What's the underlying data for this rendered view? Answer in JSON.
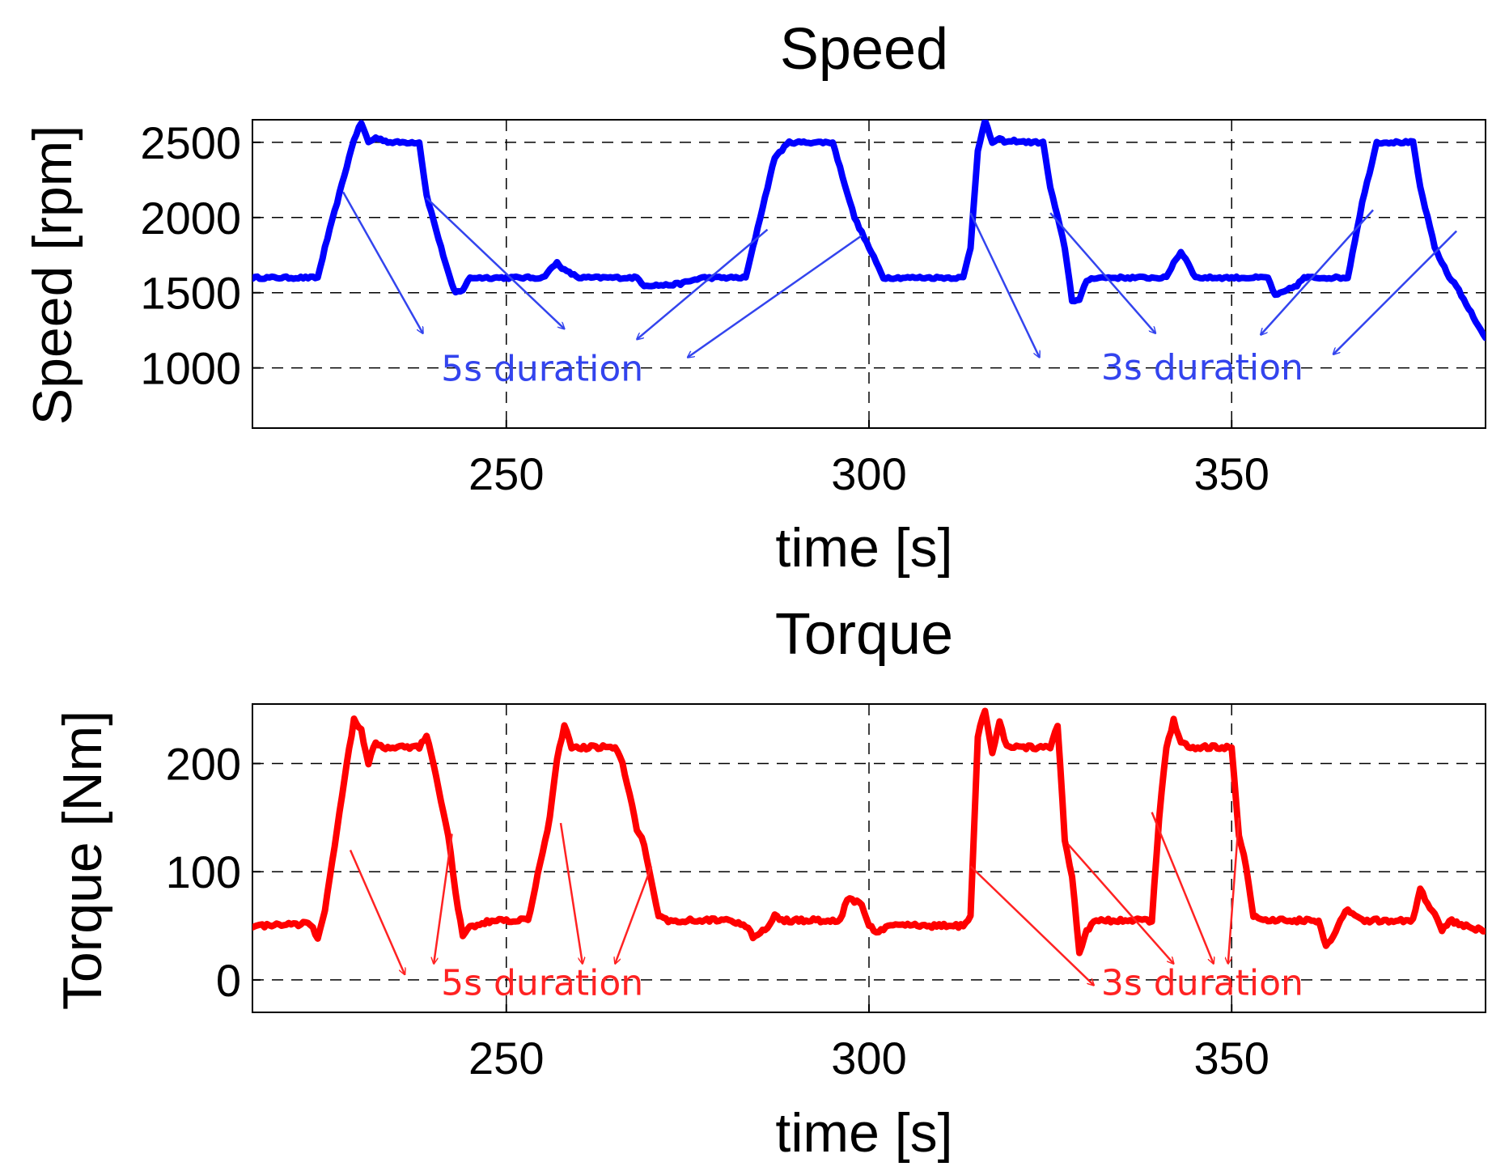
{
  "chart_data": [
    {
      "type": "line",
      "title": "Speed",
      "xlabel": "time [s]",
      "ylabel": "Speed [rpm]",
      "xlim": [
        215,
        385
      ],
      "ylim": [
        600,
        2650
      ],
      "xticks": [
        250,
        300,
        350
      ],
      "yticks": [
        1000,
        1500,
        2000,
        2500
      ],
      "grid": true,
      "series": [
        {
          "name": "Speed",
          "color": "#0000ff",
          "x": [
            215,
            224,
            225,
            229,
            230,
            231,
            232,
            234,
            238,
            239,
            241,
            242.5,
            243,
            244,
            245,
            255,
            256,
            257,
            258,
            260,
            268,
            269,
            272,
            274,
            277,
            283,
            285,
            287,
            289,
            295,
            298,
            302,
            303,
            313,
            314,
            315,
            316,
            317,
            318,
            319,
            320,
            322,
            324,
            325,
            327,
            328,
            329,
            330,
            331,
            341,
            342,
            343,
            344,
            345,
            355,
            356,
            357,
            359,
            360,
            360.5,
            366,
            368,
            370,
            375,
            376,
            378,
            380,
            381,
            382,
            385
          ],
          "y": [
            1600,
            1600,
            1800,
            2520,
            2630,
            2500,
            2530,
            2500,
            2500,
            2150,
            1800,
            1550,
            1500,
            1520,
            1600,
            1600,
            1650,
            1700,
            1650,
            1600,
            1600,
            1550,
            1550,
            1560,
            1600,
            1600,
            2000,
            2400,
            2500,
            2500,
            2000,
            1600,
            1600,
            1600,
            1800,
            2450,
            2640,
            2500,
            2520,
            2500,
            2510,
            2500,
            2500,
            2200,
            1800,
            1450,
            1450,
            1580,
            1600,
            1600,
            1700,
            1770,
            1700,
            1600,
            1600,
            1480,
            1500,
            1550,
            1600,
            1600,
            1600,
            2100,
            2500,
            2500,
            2200,
            1800,
            1600,
            1550,
            1450,
            1200
          ],
          "noise": 8
        }
      ],
      "annotations": [
        {
          "text": "5s duration",
          "x": 241,
          "y": 1000,
          "color": "#3344ee"
        },
        {
          "text": "3s duration",
          "x": 332,
          "y": 1010,
          "color": "#3344ee"
        }
      ],
      "arrows": [
        {
          "from": [
            227.5,
            2170
          ],
          "to": [
            238.5,
            1230
          ]
        },
        {
          "from": [
            239,
            2130
          ],
          "to": [
            258,
            1260
          ]
        },
        {
          "from": [
            286,
            1920
          ],
          "to": [
            268,
            1190
          ]
        },
        {
          "from": [
            299,
            1880
          ],
          "to": [
            275,
            1070
          ]
        },
        {
          "from": [
            314,
            2030
          ],
          "to": [
            323.5,
            1070
          ]
        },
        {
          "from": [
            325,
            2030
          ],
          "to": [
            339.5,
            1230
          ]
        },
        {
          "from": [
            369.5,
            2050
          ],
          "to": [
            354,
            1220
          ]
        },
        {
          "from": [
            381,
            1910
          ],
          "to": [
            364,
            1090
          ]
        }
      ]
    },
    {
      "type": "line",
      "title": "Torque",
      "xlabel": "time [s]",
      "ylabel": "Torque [Nm]",
      "xlim": [
        215,
        385
      ],
      "ylim": [
        -30,
        255
      ],
      "xticks": [
        250,
        300,
        350
      ],
      "yticks": [
        0,
        100,
        200
      ],
      "grid": true,
      "series": [
        {
          "name": "Torque",
          "color": "#ff0000",
          "x": [
            215,
            223,
            224,
            225,
            228,
            229,
            230,
            231,
            232,
            233,
            238,
            239,
            240,
            241,
            242,
            243,
            244,
            245,
            248,
            253,
            256,
            257,
            258,
            259,
            260,
            265,
            266,
            268,
            269,
            270,
            271,
            272,
            280,
            283,
            284,
            286,
            287,
            288,
            290,
            296,
            297,
            299,
            300,
            301,
            303,
            313,
            314,
            315,
            316,
            317,
            318,
            319,
            320,
            322,
            325,
            326,
            327,
            328,
            329,
            330,
            331,
            339,
            340,
            341,
            342,
            343,
            344,
            346,
            350,
            351,
            352,
            353,
            354,
            355,
            362,
            363,
            364,
            365,
            366,
            368,
            375,
            376,
            377,
            378,
            379,
            380,
            382,
            385
          ],
          "y": [
            50,
            52,
            38,
            65,
            200,
            240,
            230,
            200,
            220,
            215,
            215,
            225,
            200,
            165,
            135,
            80,
            40,
            48,
            55,
            55,
            150,
            205,
            235,
            215,
            215,
            215,
            200,
            140,
            125,
            90,
            60,
            55,
            55,
            50,
            40,
            48,
            60,
            55,
            55,
            55,
            75,
            70,
            50,
            45,
            50,
            50,
            60,
            225,
            250,
            210,
            240,
            215,
            215,
            215,
            215,
            235,
            130,
            95,
            25,
            45,
            55,
            55,
            150,
            215,
            240,
            220,
            215,
            215,
            215,
            135,
            105,
            60,
            55,
            55,
            55,
            30,
            40,
            55,
            65,
            55,
            55,
            85,
            70,
            60,
            45,
            55,
            50,
            45
          ],
          "noise": 1.8
        }
      ],
      "annotations": [
        {
          "text": "5s duration",
          "x": 241,
          "y": -2,
          "color": "#ff2222"
        },
        {
          "text": "3s duration",
          "x": 332,
          "y": -2,
          "color": "#ff2222"
        }
      ],
      "arrows": [
        {
          "from": [
            228.5,
            120
          ],
          "to": [
            236,
            5
          ]
        },
        {
          "from": [
            242.5,
            135
          ],
          "to": [
            240,
            15
          ]
        },
        {
          "from": [
            257.5,
            145
          ],
          "to": [
            260.5,
            15
          ]
        },
        {
          "from": [
            270,
            105
          ],
          "to": [
            265,
            15
          ]
        },
        {
          "from": [
            314,
            105
          ],
          "to": [
            331,
            -5
          ]
        },
        {
          "from": [
            327.5,
            125
          ],
          "to": [
            342,
            15
          ]
        },
        {
          "from": [
            339,
            155
          ],
          "to": [
            347.5,
            15
          ]
        },
        {
          "from": [
            351,
            150
          ],
          "to": [
            349.5,
            15
          ]
        }
      ]
    }
  ]
}
